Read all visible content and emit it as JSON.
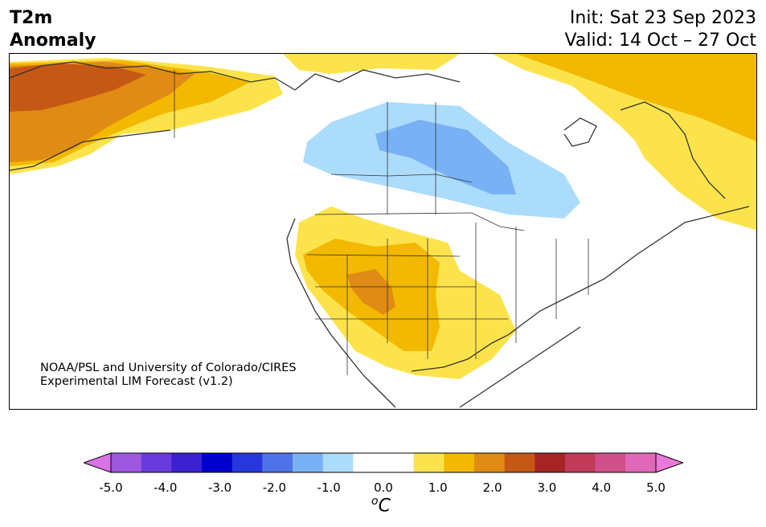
{
  "header": {
    "title_line1": "T2m",
    "title_line2": "Anomaly",
    "init": "Init: Sat 23 Sep 2023",
    "valid": "Valid: 14 Oct – 27 Oct"
  },
  "map": {
    "credit_line1": "NOAA/PSL and University of Colorado/CIRES",
    "credit_line2": "Experimental LIM Forecast (v1.2)"
  },
  "colorbar": {
    "colors": [
      "#d873e8",
      "#9e58e0",
      "#6a3bdc",
      "#3a22d2",
      "#0000cc",
      "#2638dc",
      "#4e73e8",
      "#78b2f4",
      "#acdcfb",
      "#ffffff",
      "#ffffff",
      "#fde34b",
      "#f3b800",
      "#e08b13",
      "#c65815",
      "#a82424",
      "#c23a5a",
      "#d0518a",
      "#df68b8",
      "#ea78d8"
    ],
    "ticks": [
      "-5.0",
      "-4.0",
      "-3.0",
      "-2.0",
      "-1.0",
      "0.0",
      "1.0",
      "2.0",
      "3.0",
      "4.0",
      "5.0"
    ],
    "units_base": "o",
    "units_main": "C"
  }
}
